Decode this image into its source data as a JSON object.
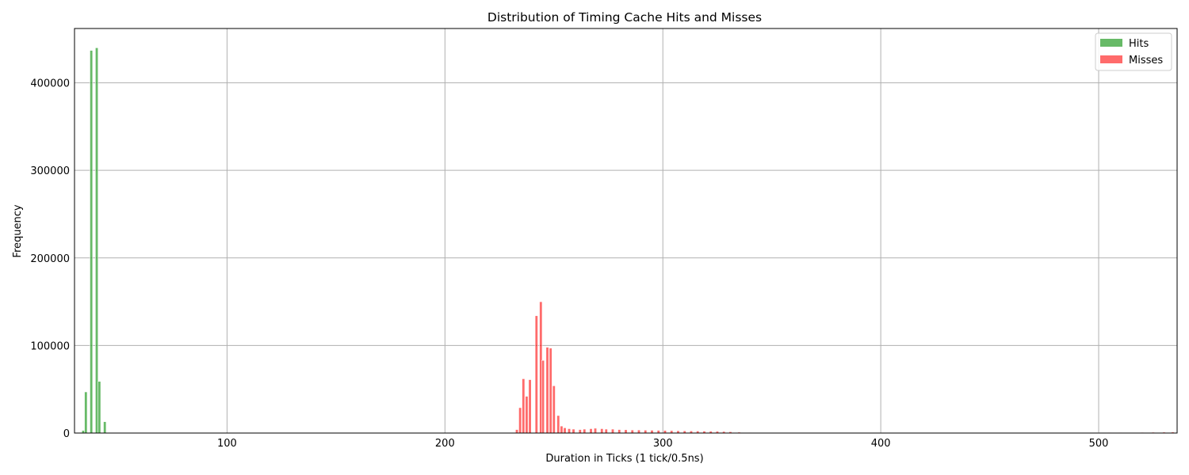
{
  "chart_data": {
    "type": "bar",
    "title": "Distribution of Timing Cache Hits and Misses",
    "xlabel": "Duration in Ticks (1 tick/0.5ns)",
    "ylabel": "Frequency",
    "xlim": [
      30,
      536
    ],
    "ylim": [
      0,
      462000
    ],
    "grid": true,
    "legend": "top-right",
    "x_ticks": [
      100,
      200,
      300,
      400,
      500
    ],
    "y_ticks": [
      0,
      100000,
      200000,
      300000,
      400000
    ],
    "bin_width": 1.25,
    "series": [
      {
        "name": "Hits",
        "color": "#2ca02c",
        "opacity": 0.72,
        "x": [
          34,
          35.2,
          37.7,
          40.2,
          41.4,
          43.9
        ],
        "values": [
          3000,
          47000,
          437000,
          440000,
          59000,
          13000
        ]
      },
      {
        "name": "Misses",
        "color": "#ff0000",
        "opacity": 0.58,
        "x": [
          233,
          234.5,
          236,
          237.5,
          239,
          240,
          242,
          244,
          245,
          247,
          248.5,
          250,
          252,
          253.5,
          255,
          257,
          259,
          262,
          264,
          267,
          269,
          272,
          274,
          277,
          280,
          283,
          286,
          289,
          292,
          295,
          298,
          301,
          304,
          307,
          310,
          313,
          316,
          319,
          322,
          325,
          328,
          331,
          335,
          340,
          350,
          360,
          370,
          380,
          390,
          400,
          410,
          420,
          430,
          440,
          450,
          460,
          470,
          480,
          490,
          500,
          505,
          510,
          515,
          520,
          525,
          530,
          534
        ],
        "values": [
          4000,
          29000,
          62000,
          42000,
          61000,
          0,
          134000,
          150000,
          83000,
          98000,
          97000,
          54000,
          20000,
          8000,
          6000,
          5000,
          4500,
          4000,
          4500,
          5000,
          5500,
          5000,
          4500,
          4500,
          4000,
          3800,
          3500,
          3500,
          3300,
          3200,
          3100,
          3000,
          2800,
          2600,
          2500,
          2400,
          2300,
          2200,
          2100,
          2000,
          1800,
          1500,
          1000,
          600,
          400,
          300,
          300,
          300,
          300,
          300,
          300,
          300,
          300,
          300,
          300,
          300,
          300,
          300,
          300,
          400,
          500,
          600,
          700,
          800,
          900,
          1000,
          1100
        ]
      }
    ]
  }
}
